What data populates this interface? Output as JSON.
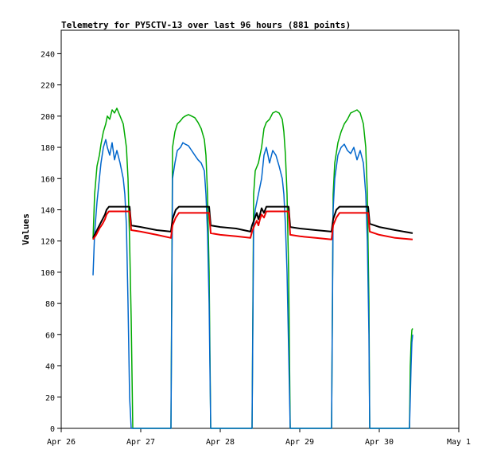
{
  "chart_data": {
    "type": "line",
    "title": "Telemetry for PY5CTV-13 over last 96 hours (881 points)",
    "xlabel": "",
    "ylabel": "Values",
    "x_unit": "day of April (fractional)",
    "xlim": [
      26,
      31
    ],
    "ylim": [
      0,
      255
    ],
    "x_ticks": [
      26,
      27,
      28,
      29,
      30,
      31
    ],
    "x_tick_labels": [
      "Apr 26",
      "Apr 27",
      "Apr 28",
      "Apr 29",
      "Apr 30",
      "May 1"
    ],
    "y_ticks": [
      0,
      20,
      40,
      60,
      80,
      100,
      120,
      140,
      160,
      180,
      200,
      220,
      240
    ],
    "grid": false,
    "legend": "none",
    "colors": {
      "frame": "#000000",
      "axis": "#000000",
      "text": "#000000",
      "background": "#ffffff"
    },
    "series": [
      {
        "color": "#00aa00",
        "x": [
          26.4,
          26.42,
          26.45,
          26.48,
          26.5,
          26.53,
          26.56,
          26.58,
          26.61,
          26.64,
          26.67,
          26.7,
          26.74,
          26.78,
          26.82,
          26.84,
          26.86,
          26.88,
          26.9,
          27.38,
          27.4,
          27.43,
          27.46,
          27.5,
          27.53,
          27.56,
          27.6,
          27.64,
          27.68,
          27.72,
          27.76,
          27.8,
          27.82,
          27.84,
          27.86,
          27.88,
          28.4,
          28.42,
          28.44,
          28.48,
          28.52,
          28.55,
          28.58,
          28.62,
          28.66,
          28.7,
          28.74,
          28.78,
          28.8,
          28.82,
          28.84,
          28.86,
          28.88,
          29.4,
          29.42,
          29.44,
          29.48,
          29.52,
          29.56,
          29.6,
          29.64,
          29.68,
          29.72,
          29.76,
          29.8,
          29.83,
          29.85,
          29.87,
          29.88,
          30.38,
          30.39,
          30.4,
          30.41,
          30.42
        ],
        "y": [
          121,
          150,
          168,
          175,
          182,
          190,
          195,
          200,
          198,
          204,
          202,
          205,
          200,
          195,
          180,
          160,
          120,
          70,
          0,
          0,
          180,
          190,
          195,
          197,
          199,
          200,
          201,
          200,
          199,
          196,
          192,
          185,
          175,
          150,
          100,
          0,
          0,
          150,
          165,
          170,
          180,
          192,
          196,
          198,
          202,
          203,
          202,
          198,
          190,
          175,
          150,
          100,
          0,
          0,
          150,
          170,
          183,
          190,
          195,
          198,
          202,
          203,
          204,
          202,
          195,
          180,
          150,
          80,
          0,
          0,
          40,
          55,
          63,
          64
        ]
      },
      {
        "color": "#0066cc",
        "x": [
          26.4,
          26.42,
          26.45,
          26.48,
          26.5,
          26.53,
          26.56,
          26.58,
          26.61,
          26.64,
          26.67,
          26.7,
          26.74,
          26.78,
          26.8,
          26.82,
          26.84,
          26.86,
          26.88,
          27.38,
          27.4,
          27.43,
          27.46,
          27.5,
          27.53,
          27.56,
          27.6,
          27.64,
          27.68,
          27.72,
          27.76,
          27.8,
          27.82,
          27.84,
          27.86,
          27.88,
          28.4,
          28.42,
          28.44,
          28.48,
          28.52,
          28.55,
          28.58,
          28.62,
          28.66,
          28.7,
          28.74,
          28.78,
          28.8,
          28.82,
          28.84,
          28.86,
          28.88,
          29.4,
          29.42,
          29.44,
          29.48,
          29.52,
          29.56,
          29.6,
          29.64,
          29.68,
          29.72,
          29.76,
          29.8,
          29.83,
          29.85,
          29.87,
          29.88,
          30.38,
          30.39,
          30.4,
          30.41,
          30.42
        ],
        "y": [
          98,
          125,
          145,
          160,
          170,
          180,
          185,
          180,
          175,
          183,
          172,
          178,
          170,
          160,
          150,
          130,
          80,
          20,
          0,
          0,
          160,
          170,
          178,
          180,
          183,
          182,
          181,
          178,
          175,
          172,
          170,
          165,
          150,
          125,
          80,
          0,
          0,
          130,
          140,
          150,
          160,
          175,
          180,
          170,
          178,
          175,
          168,
          160,
          150,
          130,
          100,
          50,
          0,
          0,
          140,
          160,
          175,
          180,
          182,
          178,
          176,
          180,
          172,
          178,
          170,
          150,
          120,
          60,
          0,
          0,
          20,
          40,
          55,
          60
        ]
      },
      {
        "color": "#000000",
        "x": [
          26.4,
          26.44,
          26.48,
          26.52,
          26.55,
          26.57,
          26.6,
          26.63,
          26.7,
          26.8,
          26.86,
          26.88,
          27.0,
          27.2,
          27.38,
          27.4,
          27.44,
          27.48,
          27.5,
          27.6,
          27.7,
          27.8,
          27.86,
          27.88,
          28.0,
          28.2,
          28.38,
          28.4,
          28.43,
          28.46,
          28.48,
          28.5,
          28.52,
          28.55,
          28.58,
          28.6,
          28.7,
          28.8,
          28.86,
          28.88,
          29.0,
          29.2,
          29.4,
          29.42,
          29.46,
          29.5,
          29.52,
          29.6,
          29.7,
          29.8,
          29.86,
          29.88,
          30.0,
          30.2,
          30.42
        ],
        "y": [
          122,
          126,
          130,
          134,
          137,
          140,
          142,
          142,
          142,
          142,
          142,
          130,
          129,
          127,
          126,
          134,
          140,
          142,
          142,
          142,
          142,
          142,
          142,
          130,
          129,
          128,
          126,
          130,
          134,
          138,
          134,
          137,
          141,
          138,
          142,
          142,
          142,
          142,
          142,
          129,
          128,
          127,
          126,
          134,
          140,
          142,
          142,
          142,
          142,
          142,
          142,
          131,
          129,
          127,
          125
        ]
      },
      {
        "color": "#ee0000",
        "x": [
          26.4,
          26.44,
          26.48,
          26.52,
          26.55,
          26.57,
          26.6,
          26.63,
          26.7,
          26.8,
          26.86,
          26.88,
          27.0,
          27.2,
          27.38,
          27.4,
          27.44,
          27.48,
          27.5,
          27.6,
          27.7,
          27.8,
          27.86,
          27.88,
          28.0,
          28.2,
          28.38,
          28.4,
          28.43,
          28.46,
          28.48,
          28.5,
          28.52,
          28.55,
          28.58,
          28.6,
          28.7,
          28.8,
          28.86,
          28.88,
          29.0,
          29.2,
          29.4,
          29.42,
          29.46,
          29.5,
          29.52,
          29.6,
          29.7,
          29.8,
          29.86,
          29.88,
          30.0,
          30.2,
          30.42
        ],
        "y": [
          121,
          124,
          128,
          131,
          134,
          137,
          139,
          139,
          139,
          139,
          139,
          127,
          126,
          124,
          122,
          130,
          135,
          138,
          138,
          138,
          138,
          138,
          138,
          125,
          124,
          123,
          122,
          126,
          130,
          133,
          130,
          134,
          137,
          135,
          139,
          139,
          139,
          139,
          139,
          124,
          123,
          122,
          121,
          130,
          135,
          138,
          138,
          138,
          138,
          138,
          138,
          126,
          124,
          122,
          121
        ]
      }
    ]
  }
}
